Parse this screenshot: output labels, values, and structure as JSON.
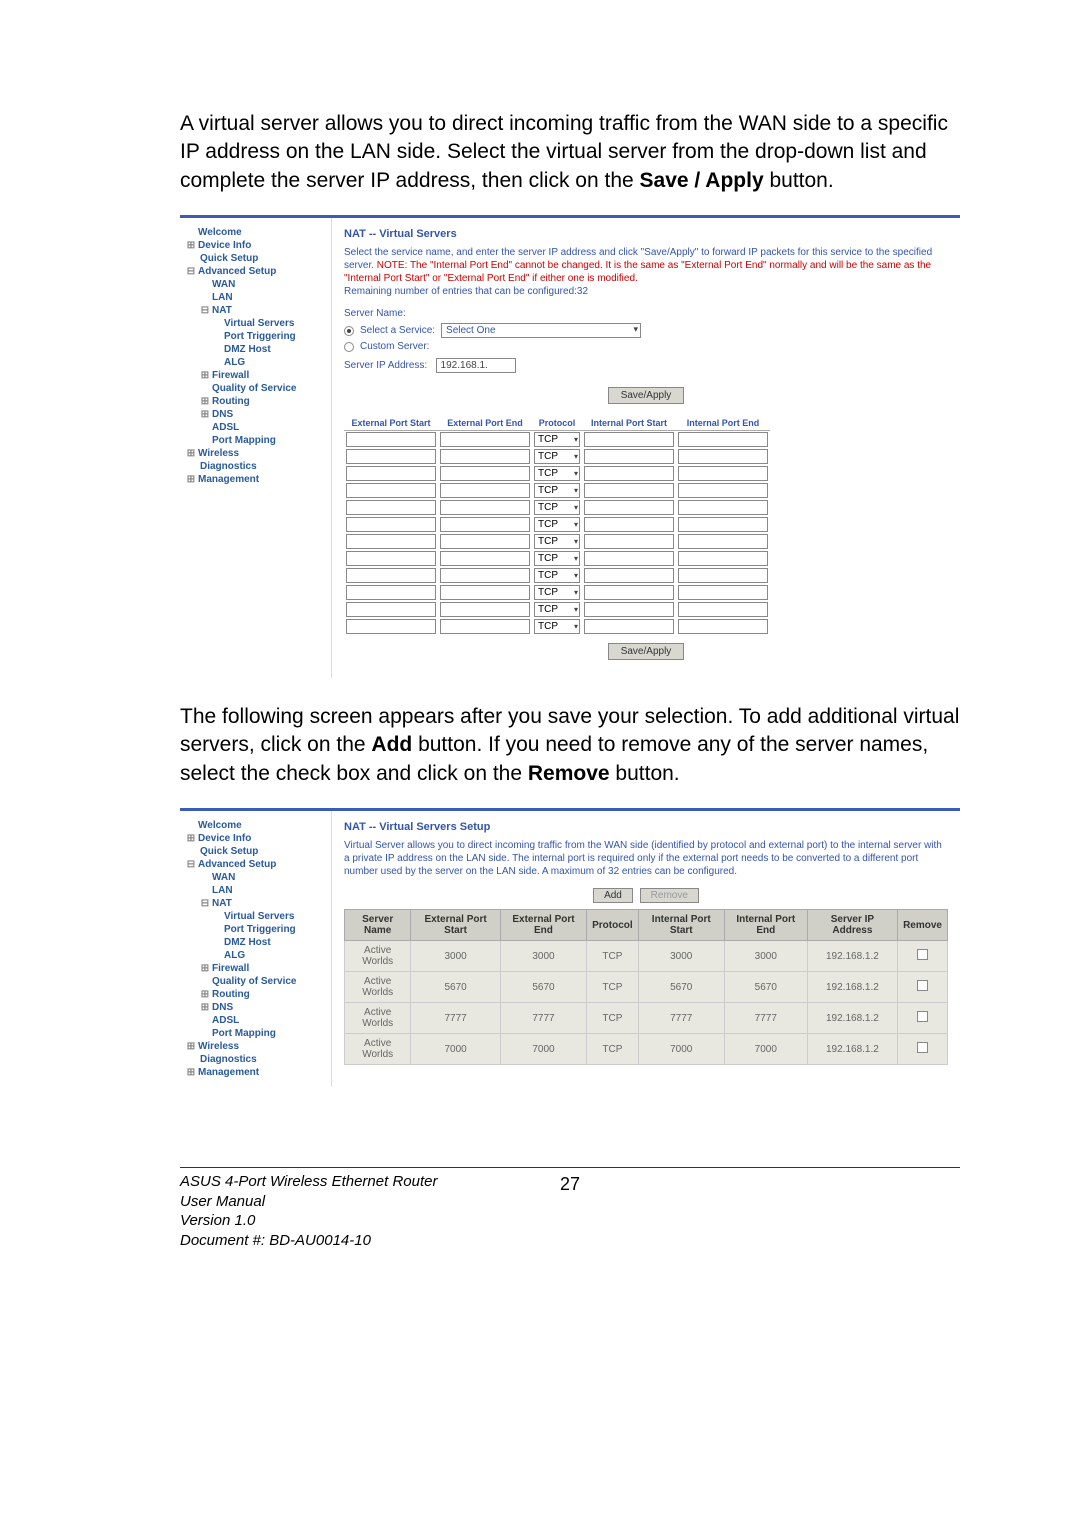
{
  "intro1_part1": "A virtual server allows you to direct incoming traffic from the WAN side to a specific IP address on the LAN side.  Select the virtual server from the drop-down list and complete the server IP address, then click on the ",
  "intro1_bold": "Save / Apply",
  "intro1_part2": " button.",
  "nav": {
    "welcome": "Welcome",
    "device_info": "Device Info",
    "quick_setup": "Quick Setup",
    "advanced_setup": "Advanced Setup",
    "wan": "WAN",
    "lan": "LAN",
    "nat": "NAT",
    "virtual_servers": "Virtual Servers",
    "port_triggering": "Port Triggering",
    "dmz_host": "DMZ Host",
    "alg": "ALG",
    "firewall": "Firewall",
    "qos": "Quality of Service",
    "routing": "Routing",
    "dns": "DNS",
    "adsl": "ADSL",
    "port_mapping": "Port Mapping",
    "wireless": "Wireless",
    "diagnostics": "Diagnostics",
    "management": "Management"
  },
  "shot1": {
    "title": "NAT -- Virtual Servers",
    "desc_p1": "Select the service name, and enter the server IP address and click \"Save/Apply\" to forward IP packets for this service to the specified server. ",
    "desc_note": "NOTE: The \"Internal Port End\" cannot be changed. It is the same as \"External Port End\" normally and will be the same as the \"Internal Port Start\" or \"External Port End\" if either one is modified.",
    "remaining": "Remaining number of entries that can be configured:32",
    "server_name_label": "Server Name:",
    "select_service_label": "Select a Service:",
    "select_service_value": "Select One",
    "custom_server_label": "Custom Server:",
    "server_ip_label": "Server IP Address:",
    "server_ip_value": "192.168.1.",
    "save_apply": "Save/Apply",
    "col_eps": "External Port Start",
    "col_epe": "External Port End",
    "col_proto": "Protocol",
    "col_ips": "Internal Port Start",
    "col_ipe": "Internal Port End",
    "proto_value": "TCP",
    "row_count": 12
  },
  "intro2_part1": "The following screen appears after you save your selection.  To add additional virtual servers, click on the ",
  "intro2_bold1": "Add",
  "intro2_part2": " button.  If you need to remove any of the server names, select the check box and click on the ",
  "intro2_bold2": "Remove",
  "intro2_part3": " button.",
  "shot2": {
    "title": "NAT -- Virtual Servers Setup",
    "desc": "Virtual Server allows you to direct incoming traffic from the WAN side (identified by protocol and external port) to the internal server with a private IP address on the LAN side. The internal port is required only if the external port needs to be converted to a different port number used by the server on the LAN side. A maximum of 32 entries can be configured.",
    "btn_add": "Add",
    "btn_remove": "Remove",
    "cols": {
      "server": "Server Name",
      "eps": "External Port Start",
      "epe": "External Port End",
      "proto": "Protocol",
      "ips": "Internal Port Start",
      "ipe": "Internal Port End",
      "ip": "Server IP Address",
      "rm": "Remove"
    },
    "rows": [
      {
        "server": "Active Worlds",
        "eps": "3000",
        "epe": "3000",
        "proto": "TCP",
        "ips": "3000",
        "ipe": "3000",
        "ip": "192.168.1.2"
      },
      {
        "server": "Active Worlds",
        "eps": "5670",
        "epe": "5670",
        "proto": "TCP",
        "ips": "5670",
        "ipe": "5670",
        "ip": "192.168.1.2"
      },
      {
        "server": "Active Worlds",
        "eps": "7777",
        "epe": "7777",
        "proto": "TCP",
        "ips": "7777",
        "ipe": "7777",
        "ip": "192.168.1.2"
      },
      {
        "server": "Active Worlds",
        "eps": "7000",
        "epe": "7000",
        "proto": "TCP",
        "ips": "7000",
        "ipe": "7000",
        "ip": "192.168.1.2"
      }
    ]
  },
  "footer": {
    "l1": "ASUS 4-Port Wireless Ethernet Router",
    "l2": "User Manual",
    "l3": "Version 1.0",
    "l4": "Document #:  BD-AU0014-10",
    "page": "27"
  }
}
